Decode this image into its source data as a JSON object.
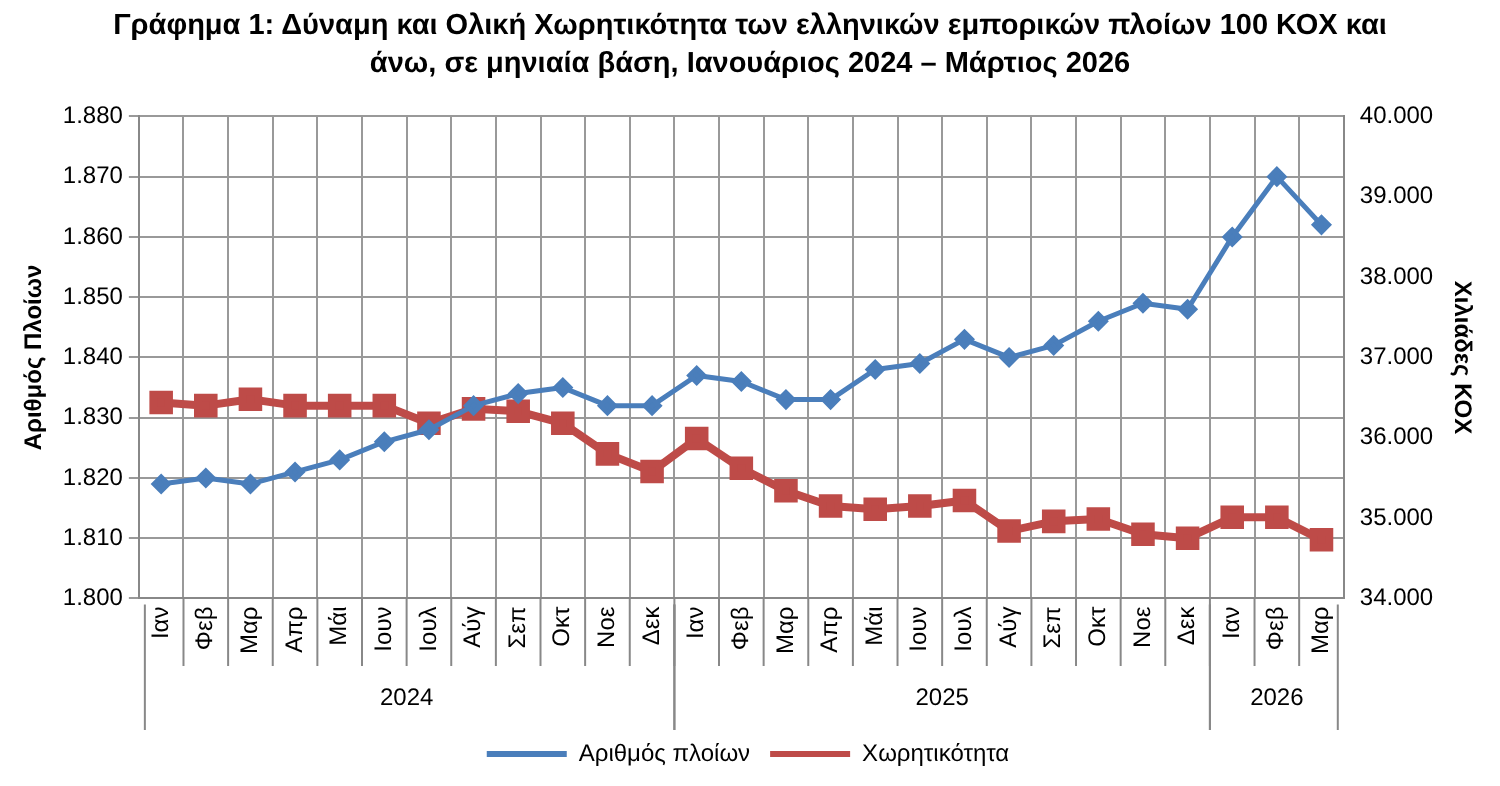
{
  "chart_data": {
    "type": "line",
    "title": "Γράφημα 1: Δύναμη και Ολική Χωρητικότητα των ελληνικών εμπορικών πλοίων 100 ΚΟΧ και άνω, σε μηνιαία βάση, Ιανουάριος 2024 – Μάρτιος 2026",
    "ylabel": "Αριθμός Πλοίων",
    "y2label": "Χιλιάδες ΚΟΧ",
    "categories": [
      "Ιαν",
      "Φεβ",
      "Μαρ",
      "Απρ",
      "Μάι",
      "Ιουν",
      "Ιουλ",
      "Αύγ",
      "Σεπ",
      "Οκτ",
      "Νοε",
      "Δεκ",
      "Ιαν",
      "Φεβ",
      "Μαρ",
      "Απρ",
      "Μάι",
      "Ιουν",
      "Ιουλ",
      "Αύγ",
      "Σεπ",
      "Οκτ",
      "Νοε",
      "Δεκ",
      "Ιαν",
      "Φεβ",
      "Μαρ"
    ],
    "series": [
      {
        "name": "Αριθμός πλοίων",
        "color": "#4a7ebb",
        "marker": "diamond",
        "values": [
          1819,
          1820,
          1819,
          1821,
          1823,
          1826,
          1828,
          1832,
          1834,
          1835,
          1832,
          1832,
          1837,
          1836,
          1833,
          1833,
          1838,
          1839,
          1843,
          1840,
          1842,
          1846,
          1849,
          1848,
          1860,
          1870,
          1862
        ]
      },
      {
        "name": "Χωρητικότητα",
        "color": "#be4b48",
        "marker": "square",
        "axis": "y2",
        "values": [
          36440,
          36400,
          36480,
          36400,
          36400,
          36400,
          36180,
          36360,
          36330,
          36180,
          35800,
          35580,
          35990,
          35620,
          35340,
          35150,
          35110,
          35150,
          35220,
          34840,
          34960,
          34990,
          34800,
          34750,
          35010,
          35010,
          34730
        ]
      }
    ],
    "ylim": [
      1800,
      1880
    ],
    "yticks": [
      {
        "value": 1800,
        "label": "1.800"
      },
      {
        "value": 1810,
        "label": "1.810"
      },
      {
        "value": 1820,
        "label": "1.820"
      },
      {
        "value": 1830,
        "label": "1.830"
      },
      {
        "value": 1840,
        "label": "1.840"
      },
      {
        "value": 1850,
        "label": "1.850"
      },
      {
        "value": 1860,
        "label": "1.860"
      },
      {
        "value": 1870,
        "label": "1.870"
      },
      {
        "value": 1880,
        "label": "1.880"
      }
    ],
    "y2lim": [
      34000,
      40000
    ],
    "y2ticks": [
      {
        "value": 34000,
        "label": "34.000"
      },
      {
        "value": 35000,
        "label": "35.000"
      },
      {
        "value": 36000,
        "label": "36.000"
      },
      {
        "value": 37000,
        "label": "37.000"
      },
      {
        "value": 38000,
        "label": "38.000"
      },
      {
        "value": 39000,
        "label": "39.000"
      },
      {
        "value": 40000,
        "label": "40.000"
      }
    ],
    "annotations": [
      "2024",
      "2025",
      "2026"
    ],
    "grid": true,
    "legend": "bottom",
    "line_style": "solid"
  }
}
